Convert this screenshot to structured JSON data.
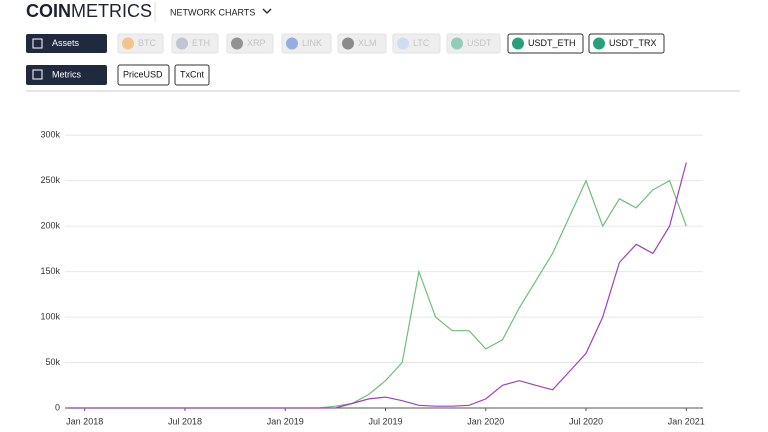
{
  "header": {
    "logo_bold": "COIN",
    "logo_light": "METRICS",
    "nav": "NETWORK CHARTS"
  },
  "toolbar": {
    "assets_label": "Assets",
    "assets": [
      "BTC",
      "ETH",
      "XRP",
      "LINK",
      "XLM",
      "LTC",
      "USDT"
    ],
    "metrics_label": "Metrics",
    "metrics": [
      "PriceUSD",
      "TxCnt"
    ]
  },
  "chart_data": {
    "type": "line",
    "x": [
      "2017-12",
      "2018-01",
      "2018-02",
      "2018-03",
      "2018-04",
      "2018-05",
      "2018-06",
      "2018-07",
      "2018-08",
      "2018-09",
      "2018-10",
      "2018-11",
      "2018-12",
      "2019-01",
      "2019-02",
      "2019-03",
      "2019-04",
      "2019-05",
      "2019-06",
      "2019-07",
      "2019-08",
      "2019-09",
      "2019-10",
      "2019-11",
      "2019-12",
      "2020-01",
      "2020-02",
      "2020-03",
      "2020-04",
      "2020-05",
      "2020-06",
      "2020-07",
      "2020-08",
      "2020-09",
      "2020-10",
      "2020-11",
      "2020-12",
      "2021-01"
    ],
    "series": [
      {
        "name": "USDT_ETH",
        "color": "#6dbf7a",
        "values": [
          0,
          0,
          0,
          0,
          0,
          0,
          0,
          0,
          0,
          0,
          0,
          0,
          0,
          0,
          0,
          0,
          2000,
          5000,
          15000,
          30000,
          50000,
          150000,
          100000,
          85000,
          85000,
          65000,
          75000,
          110000,
          140000,
          170000,
          210000,
          250000,
          200000,
          230000,
          220000,
          240000,
          250000,
          200000
        ]
      },
      {
        "name": "USDT_TRX",
        "color": "#a040c0",
        "values": [
          0,
          0,
          0,
          0,
          0,
          0,
          0,
          0,
          0,
          0,
          0,
          0,
          0,
          0,
          0,
          0,
          0,
          5000,
          10000,
          12000,
          8000,
          3000,
          2000,
          2000,
          3000,
          10000,
          25000,
          30000,
          25000,
          20000,
          40000,
          60000,
          100000,
          160000,
          180000,
          170000,
          200000,
          270000
        ]
      }
    ],
    "xlim": [
      "2017-12",
      "2021-02"
    ],
    "xticks": [
      {
        "value": "2018-01",
        "label": "Jan 2018"
      },
      {
        "value": "2018-07",
        "label": "Jul 2018"
      },
      {
        "value": "2019-01",
        "label": "Jan 2019"
      },
      {
        "value": "2019-07",
        "label": "Jul 2019"
      },
      {
        "value": "2020-01",
        "label": "Jan 2020"
      },
      {
        "value": "2020-07",
        "label": "Jul 2020"
      },
      {
        "value": "2021-01",
        "label": "Jan 2021"
      }
    ],
    "ylim": [
      0,
      320000
    ],
    "yticks": [
      0,
      {
        "value": 50000,
        "label": "50k"
      },
      {
        "value": 100000,
        "label": "100k"
      },
      {
        "value": 150000,
        "label": "150k"
      },
      {
        "value": 200000,
        "label": "200k"
      },
      {
        "value": 250000,
        "label": "250k"
      },
      {
        "value": 300000,
        "label": "300k"
      }
    ],
    "grid": true
  }
}
